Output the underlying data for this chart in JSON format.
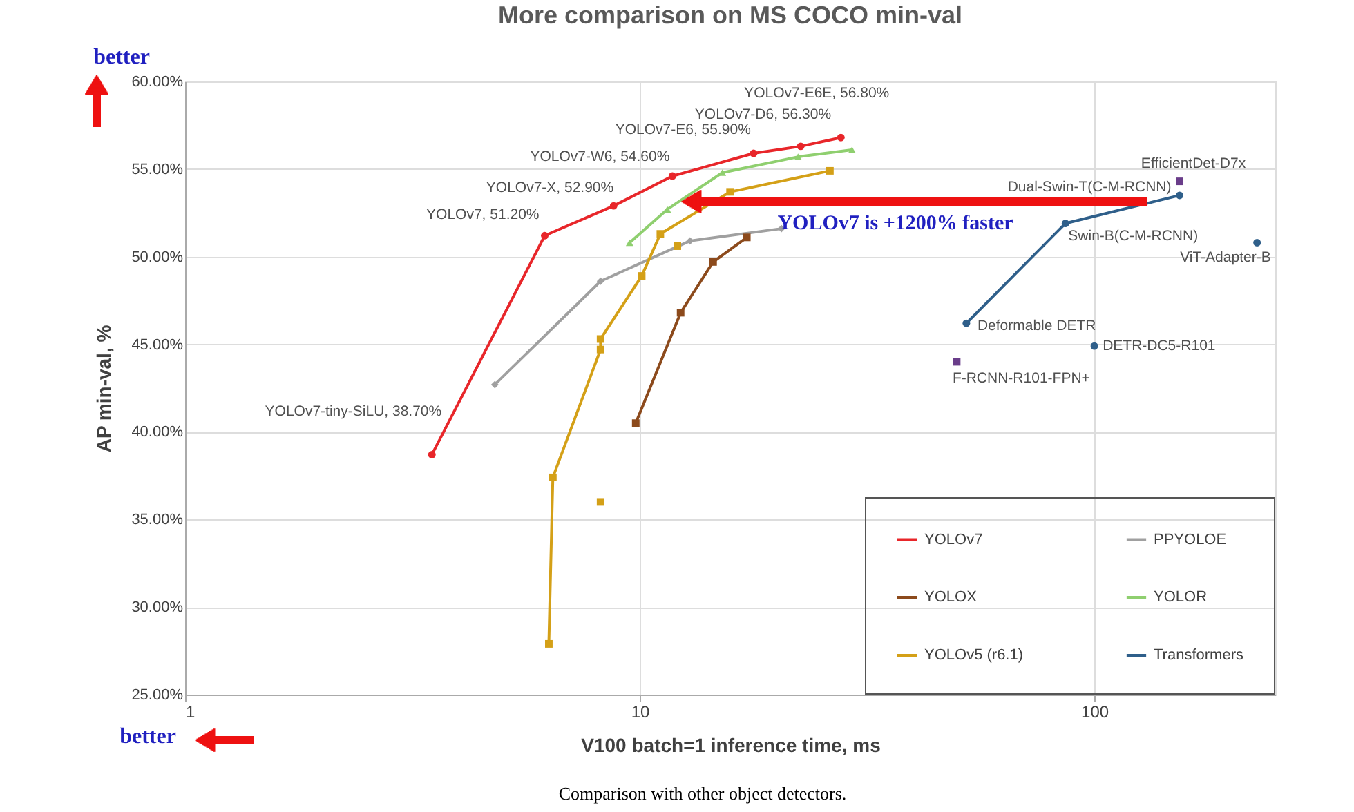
{
  "chart_data": {
    "type": "line",
    "title": "More comparison on MS COCO min-val",
    "xlabel": "V100 batch=1 inference time, ms",
    "ylabel": "AP min-val, %",
    "log": "x",
    "xlim": [
      1,
      250
    ],
    "xticks": [
      1,
      10,
      100
    ],
    "ylim": [
      25,
      60
    ],
    "yticks": [
      {
        "value": 25,
        "label": "25.00%"
      },
      {
        "value": 30,
        "label": "30.00%"
      },
      {
        "value": 35,
        "label": "35.00%"
      },
      {
        "value": 40,
        "label": "40.00%"
      },
      {
        "value": 45,
        "label": "45.00%"
      },
      {
        "value": 50,
        "label": "50.00%"
      },
      {
        "value": 55,
        "label": "55.00%"
      },
      {
        "value": 60,
        "label": "60.00%"
      }
    ],
    "grid": true,
    "legend": "bottom right",
    "line_style": "solid",
    "series": [
      {
        "name": "YOLOv7",
        "color": "#e8262a",
        "marker": "circle",
        "x": [
          3.49,
          6.18,
          8.76,
          11.8,
          17.8,
          22.6,
          27.7
        ],
        "values": [
          38.7,
          51.2,
          52.9,
          54.6,
          55.9,
          56.3,
          56.8
        ]
      },
      {
        "name": "PPYOLOE",
        "color": "#a0a0a0",
        "marker": "diamond",
        "x": [
          4.8,
          8.2,
          12.9,
          20.5
        ],
        "values": [
          42.7,
          48.6,
          50.9,
          51.6
        ]
      },
      {
        "name": "YOLOX",
        "color": "#8c4a1c",
        "marker": "square",
        "x": [
          9.8,
          12.3,
          14.5,
          17.2
        ],
        "values": [
          40.5,
          46.8,
          49.7,
          51.1
        ]
      },
      {
        "name": "YOLOR",
        "color": "#8fcf6f",
        "marker": "triangle",
        "x": [
          9.5,
          11.5,
          15.2,
          22.3,
          29.3
        ],
        "values": [
          50.8,
          52.7,
          54.8,
          55.7,
          56.1
        ]
      },
      {
        "name": "YOLOv5 (r6.1)",
        "color": "#d4a017",
        "marker": "square",
        "x": [
          6.31,
          6.44,
          8.2,
          8.2,
          10.1,
          11.1,
          15.8,
          26.2
        ],
        "values": [
          27.9,
          37.4,
          44.7,
          45.3,
          48.9,
          51.3,
          53.7,
          54.9
        ]
      },
      {
        "name": "Transformers",
        "color": "#2f5f8a",
        "marker": "circle",
        "x": [
          52.3,
          86.4,
          154
        ],
        "values": [
          46.2,
          51.9,
          53.5
        ]
      },
      {
        "type": "scatter",
        "color": "#d4a017",
        "marker": "square",
        "x": [
          8.2,
          12.1
        ],
        "values": [
          36.0,
          50.6
        ]
      },
      {
        "type": "scatter",
        "color": "#2f5f8a",
        "marker": "circle",
        "x": [
          100,
          228
        ],
        "values": [
          44.9,
          50.8
        ]
      },
      {
        "type": "scatter",
        "color": "#6a3d8a",
        "marker": "square",
        "x": [
          154,
          49.8
        ],
        "values": [
          54.3,
          44.0
        ]
      }
    ],
    "annotations": [
      {
        "text": "YOLOv7-tiny-SiLU, 38.70%",
        "x": 3.49,
        "y": 38.7
      },
      {
        "text": "YOLOv7, 51.20%",
        "x": 6.18,
        "y": 51.2
      },
      {
        "text": "YOLOv7-X, 52.90%",
        "x": 8.76,
        "y": 52.9
      },
      {
        "text": "YOLOv7-W6, 54.60%",
        "x": 11.8,
        "y": 54.6
      },
      {
        "text": "YOLOv7-E6, 55.90%",
        "x": 17.8,
        "y": 55.9
      },
      {
        "text": "YOLOv7-D6, 56.30%",
        "x": 22.6,
        "y": 56.3
      },
      {
        "text": "YOLOv7-E6E, 56.80%",
        "x": 27.7,
        "y": 56.8
      },
      {
        "text": "Deformable DETR",
        "x": 52.3,
        "y": 46.2
      },
      {
        "text": "Swin-B(C-M-RCNN)",
        "x": 86.4,
        "y": 51.9
      },
      {
        "text": "Dual-Swin-T(C-M-RCNN)",
        "x": 154,
        "y": 53.5
      },
      {
        "text": "EfficientDet-D7x",
        "x": 154,
        "y": 54.3
      },
      {
        "text": "ViT-Adapter-B",
        "x": 228,
        "y": 50.8
      },
      {
        "text": "DETR-DC5-R101",
        "x": 100,
        "y": 44.9
      },
      {
        "text": "F-RCNN-R101-FPN+",
        "x": 49.8,
        "y": 44.0
      },
      "YOLOv7 is +1200% faster",
      "better",
      "better",
      "Comparison with other object detectors."
    ]
  }
}
